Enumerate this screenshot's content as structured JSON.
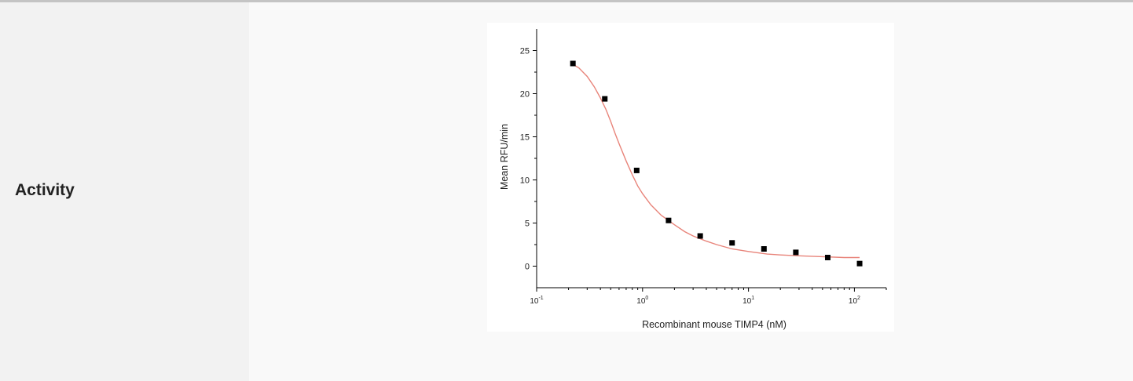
{
  "row": {
    "label": "Activity"
  },
  "chart_data": {
    "type": "scatter",
    "title": "",
    "xlabel": "Recombinant mouse TIMP4 (nM)",
    "ylabel": "Mean RFU/min",
    "xscale": "log",
    "xlim": [
      0.1,
      200
    ],
    "ylim": [
      -2.5,
      27.5
    ],
    "x_ticks": [
      {
        "value": 0.1,
        "base": "10",
        "exp": "-1"
      },
      {
        "value": 1,
        "base": "10",
        "exp": "0"
      },
      {
        "value": 10,
        "base": "10",
        "exp": "1"
      },
      {
        "value": 100,
        "base": "10",
        "exp": "2"
      }
    ],
    "y_ticks": [
      "0",
      "5",
      "10",
      "15",
      "20",
      "25"
    ],
    "grid": false,
    "legend": "none",
    "series": [
      {
        "type": "scatter",
        "color": "#000000",
        "marker": "square",
        "x": [
          0.22,
          0.44,
          0.88,
          1.76,
          3.5,
          7.0,
          14.0,
          28.0,
          56.0,
          112.0
        ],
        "y": [
          23.5,
          19.4,
          11.1,
          5.3,
          3.5,
          2.7,
          2.0,
          1.6,
          1.0,
          0.3
        ]
      },
      {
        "type": "line",
        "color": "#e8847a",
        "x": [
          0.22,
          0.25,
          0.3,
          0.35,
          0.4,
          0.45,
          0.5,
          0.55,
          0.6,
          0.7,
          0.8,
          0.9,
          1.0,
          1.2,
          1.5,
          2.0,
          2.5,
          3.0,
          4.0,
          5.0,
          7.0,
          10.0,
          15.0,
          20.0,
          30.0,
          50.0,
          80.0,
          112.0
        ],
        "y": [
          23.4,
          23.0,
          22.0,
          20.8,
          19.5,
          18.2,
          16.8,
          15.4,
          14.2,
          12.2,
          10.6,
          9.3,
          8.4,
          7.1,
          5.9,
          4.8,
          4.0,
          3.5,
          2.9,
          2.5,
          2.0,
          1.7,
          1.4,
          1.3,
          1.2,
          1.1,
          1.0,
          1.0
        ]
      }
    ]
  }
}
